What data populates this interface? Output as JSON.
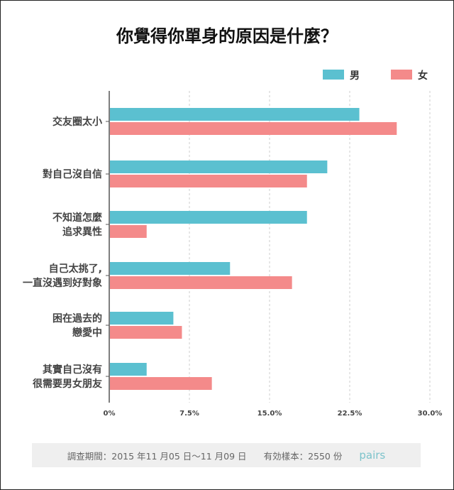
{
  "chart_data": {
    "type": "bar",
    "orientation": "horizontal",
    "title": "你覺得你單身的原因是什麼？",
    "categories": [
      [
        "交友圈太小"
      ],
      [
        "對自己沒自信"
      ],
      [
        "不知道怎麼",
        "追求異性"
      ],
      [
        "自己太挑了,",
        "一直沒遇到好對象"
      ],
      [
        "困在過去的",
        "戀愛中"
      ],
      [
        "其實自己沒有",
        "很需要男女朋友"
      ]
    ],
    "series": [
      {
        "name": "男",
        "color": "#5bc0d0",
        "values": [
          23.4,
          20.4,
          18.5,
          11.3,
          6.0,
          3.5
        ]
      },
      {
        "name": "女",
        "color": "#f48a8a",
        "values": [
          26.9,
          18.5,
          3.5,
          17.1,
          6.8,
          9.6
        ]
      }
    ],
    "xlim": [
      0,
      30
    ],
    "xticks": [
      "0%",
      "7.5%",
      "15.0%",
      "22.5%",
      "30.0%"
    ],
    "xtick_values": [
      0,
      7.5,
      15,
      22.5,
      30
    ],
    "grid": true,
    "legend": "top-right",
    "xlabel": "",
    "ylabel": ""
  },
  "footer": {
    "period": "調查期間：2015 年11 月05 日～11 月09 日",
    "sample": "有効樣本：2550 份",
    "logo": "pairs"
  }
}
